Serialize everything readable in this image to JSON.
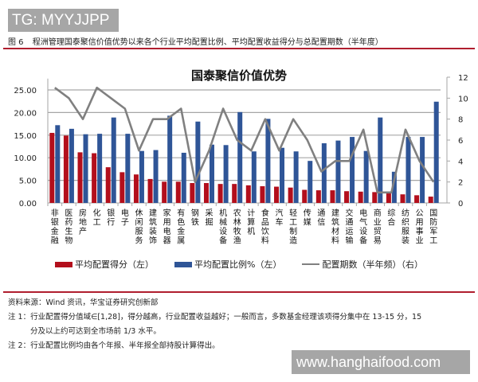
{
  "watermark_top": "TG: MYYJJPP",
  "watermark_bottom": "www.hanghaifood.com",
  "figure": {
    "number": "图 6",
    "caption": "程洲管理国泰聚信价值优势以来各个行业平均配置比例、平均配置收益得分与总配置期数（半年度）"
  },
  "legend": {
    "series1": "平均配置得分（左）",
    "series2": "平均配置比例%（左）",
    "series3": "配置期数（半年频）（右）"
  },
  "notes": {
    "source": "资料来源：Wind 资讯，华宝证券研究创新部",
    "note1_line1": "注 1：行业配置得分值域∈[1,28]，得分越高，行业配置收益越好；一般而言，多数基金经理该项得分集中在 13-15 分，15",
    "note1_line2": "分及以上约可达到全市场前 1/3 水平。",
    "note2": "注 2：行业配置比例均由各个年报、半年报全部持股计算得出。"
  },
  "colors": {
    "score": "#b30f1c",
    "ratio": "#2f5597",
    "periods": "#808080",
    "rule": "#b01e2e",
    "grid": "#a6a6a6"
  },
  "chart_data": {
    "type": "bar",
    "title": "国泰聚信价值优势",
    "categories": [
      "非银金融",
      "医药生物",
      "房地产",
      "化工",
      "银行",
      "电子",
      "休闲服务",
      "建筑装饰",
      "家用电器",
      "有色金属",
      "钢铁",
      "采掘",
      "机械设备",
      "农林牧渔",
      "计算机",
      "食品饮料",
      "汽车",
      "轻工制造",
      "传媒",
      "通信",
      "建筑材料",
      "交通运输",
      "电气设备",
      "商业贸易",
      "综合",
      "纺织服装",
      "公用事业",
      "国防军工"
    ],
    "series": [
      {
        "name": "平均配置得分（左）",
        "type": "bar",
        "axis": "left",
        "values": [
          15.5,
          14.9,
          11.2,
          11.0,
          7.9,
          6.8,
          6.3,
          5.3,
          4.7,
          4.7,
          4.4,
          4.4,
          4.2,
          4.2,
          3.9,
          3.7,
          3.6,
          3.4,
          2.9,
          2.8,
          2.8,
          2.6,
          2.5,
          2.4,
          2.2,
          1.9,
          1.7,
          1.4
        ]
      },
      {
        "name": "平均配置比例%（左）",
        "type": "bar",
        "axis": "left",
        "values": [
          17.2,
          16.4,
          15.2,
          15.3,
          18.9,
          15.3,
          11.5,
          11.7,
          19.3,
          11.1,
          18.0,
          12.9,
          12.8,
          20.1,
          11.4,
          18.6,
          12.2,
          11.4,
          9.3,
          13.2,
          13.8,
          14.6,
          11.5,
          18.9,
          6.9,
          14.6,
          14.6,
          22.4
        ]
      },
      {
        "name": "配置期数（半年频）（右）",
        "type": "line",
        "axis": "right",
        "values": [
          11,
          10,
          8,
          11,
          10,
          9,
          5,
          8,
          8,
          9,
          2,
          5,
          9,
          6,
          5,
          8,
          5,
          8,
          6,
          3,
          4,
          4,
          7,
          1,
          1,
          7,
          4,
          2
        ]
      }
    ],
    "ylabel": "",
    "xlabel": "",
    "ylim": [
      0,
      27.5
    ],
    "yticks_left": [
      "0.00",
      "5.00",
      "10.00",
      "15.00",
      "20.00",
      "25.00"
    ],
    "ylim_right": [
      0,
      12
    ],
    "yticks_right": [
      "0",
      "2",
      "4",
      "6",
      "8",
      "10",
      "12"
    ],
    "grid": true,
    "legend_position": "bottom"
  }
}
